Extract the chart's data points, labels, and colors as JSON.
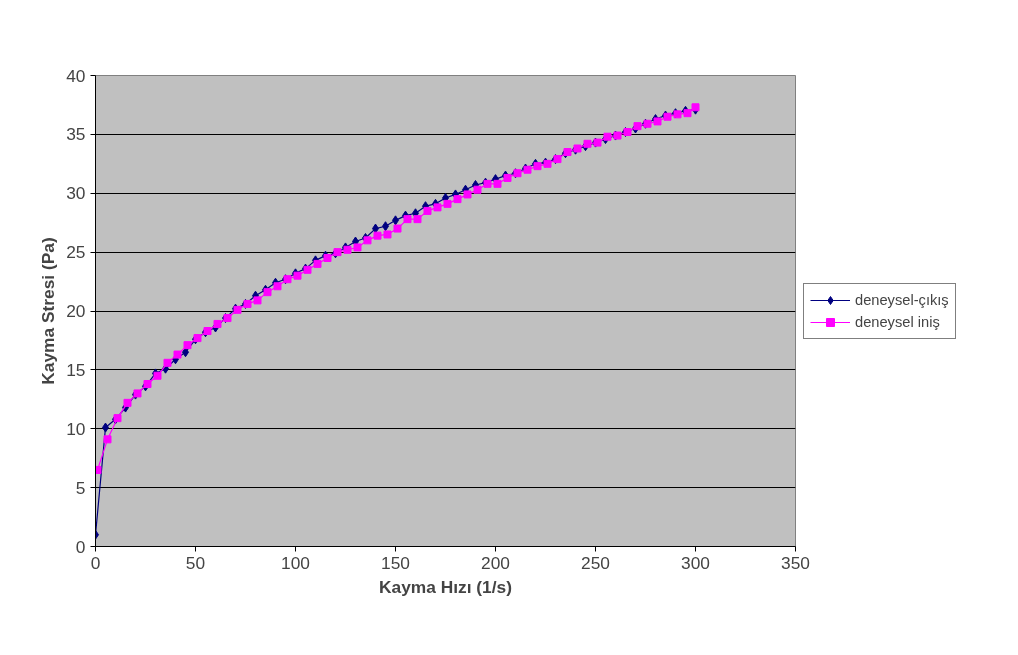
{
  "chart_data": {
    "type": "line",
    "xlabel": "Kayma Hızı (1/s)",
    "ylabel": "Kayma Stresi (Pa)",
    "xlim": [
      0,
      350
    ],
    "ylim": [
      0,
      40
    ],
    "xticks": [
      0,
      50,
      100,
      150,
      200,
      250,
      300,
      350
    ],
    "yticks": [
      0,
      5,
      10,
      15,
      20,
      25,
      30,
      35,
      40
    ],
    "grid": "y",
    "legend": "right",
    "line_style": "solid",
    "series": [
      {
        "name": "deneysel-çıkış",
        "color": "#000080",
        "marker": "diamond",
        "x": [
          0,
          5,
          10,
          15,
          20,
          25,
          30,
          35,
          40,
          45,
          50,
          55,
          60,
          65,
          70,
          75,
          80,
          85,
          90,
          95,
          100,
          105,
          110,
          115,
          120,
          125,
          130,
          135,
          140,
          145,
          150,
          155,
          160,
          165,
          170,
          175,
          180,
          185,
          190,
          195,
          200,
          205,
          210,
          215,
          220,
          225,
          230,
          235,
          240,
          245,
          250,
          255,
          260,
          265,
          270,
          275,
          280,
          285,
          290,
          295,
          300
        ],
        "values": [
          1,
          10.1,
          10.8,
          11.8,
          12.9,
          13.6,
          14.7,
          15.1,
          15.9,
          16.5,
          17.6,
          18.2,
          18.6,
          19.4,
          20.2,
          20.6,
          21.3,
          21.8,
          22.4,
          22.7,
          23.2,
          23.6,
          24.3,
          24.7,
          24.9,
          25.4,
          25.9,
          26.2,
          27.0,
          27.2,
          27.7,
          28.1,
          28.3,
          28.9,
          29.1,
          29.6,
          29.9,
          30.3,
          30.7,
          30.9,
          31.2,
          31.5,
          31.7,
          32.1,
          32.5,
          32.6,
          32.9,
          33.4,
          33.7,
          34.0,
          34.3,
          34.6,
          34.9,
          35.2,
          35.5,
          35.9,
          36.3,
          36.6,
          36.8,
          37.0,
          37.1
        ]
      },
      {
        "name": "deneysel iniş",
        "color": "#ff00ff",
        "marker": "square",
        "x": [
          1,
          6,
          11,
          16,
          21,
          26,
          31,
          36,
          41,
          46,
          51,
          56,
          61,
          66,
          71,
          76,
          81,
          86,
          91,
          96,
          101,
          106,
          111,
          116,
          121,
          126,
          131,
          136,
          141,
          146,
          151,
          156,
          161,
          166,
          171,
          176,
          181,
          186,
          191,
          196,
          201,
          206,
          211,
          216,
          221,
          226,
          231,
          236,
          241,
          246,
          251,
          256,
          261,
          266,
          271,
          276,
          281,
          286,
          291,
          296,
          300
        ],
        "values": [
          6.5,
          9.1,
          10.9,
          12.2,
          13.0,
          13.8,
          14.5,
          15.6,
          16.3,
          17.1,
          17.7,
          18.3,
          18.9,
          19.4,
          20.1,
          20.6,
          20.9,
          21.6,
          22.1,
          22.7,
          23.0,
          23.5,
          24.0,
          24.5,
          25.0,
          25.2,
          25.4,
          26.0,
          26.4,
          26.5,
          27.0,
          27.8,
          27.8,
          28.5,
          28.8,
          29.1,
          29.5,
          29.9,
          30.3,
          30.8,
          30.8,
          31.3,
          31.7,
          32.0,
          32.3,
          32.5,
          32.9,
          33.5,
          33.8,
          34.2,
          34.3,
          34.8,
          34.9,
          35.2,
          35.7,
          35.9,
          36.1,
          36.5,
          36.7,
          36.8,
          37.3
        ]
      }
    ]
  }
}
